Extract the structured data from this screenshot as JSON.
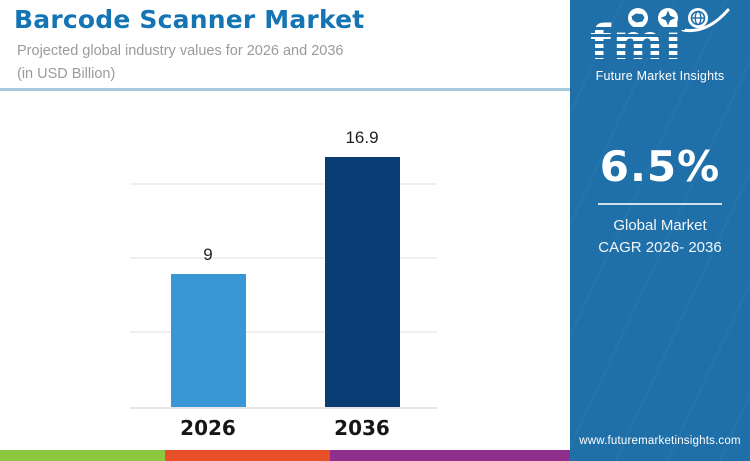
{
  "header": {
    "title": "Barcode Scanner Market",
    "subtitle_line1": "Projected global industry values for 2026 and 2036",
    "subtitle_line2": "(in USD Billion)"
  },
  "chart_data": {
    "type": "bar",
    "title": "Barcode Scanner Market",
    "subtitle": "Projected global industry values for 2026 and 2036 (in USD Billion)",
    "categories": [
      "2026",
      "2036"
    ],
    "values": [
      9,
      16.9
    ],
    "value_labels": [
      "9",
      "16.9"
    ],
    "bar_colors": [
      "#3a97d5",
      "#093c72"
    ],
    "unit": "USD Billion",
    "ylim": [
      0,
      20
    ],
    "gridlines": [
      5,
      10,
      15
    ],
    "grid": true,
    "legend": false,
    "xlabel": "",
    "ylabel": ""
  },
  "sidebar": {
    "logo_text": "fmi",
    "logo_tagline": "Future Market Insights",
    "logo_icons": [
      "usa-map-icon",
      "compass-icon",
      "globe-icon"
    ],
    "stat_value": "6.5%",
    "stat_label_line1": "Global Market",
    "stat_label_line2": "CAGR 2026- 2036",
    "website": "www.futuremarketinsights.com",
    "background_color": "#1f6fa9"
  },
  "footer_stripe": {
    "colors": [
      "#8dc63f",
      "#e8502a",
      "#8e2f8e"
    ]
  },
  "colors": {
    "title": "#1474b4",
    "subtitle": "#9b9b9b",
    "header_divider": "#a7c9dd",
    "gridline": "#f2eeee",
    "baseline": "#e7e5e5",
    "axis_label": "#161616"
  }
}
